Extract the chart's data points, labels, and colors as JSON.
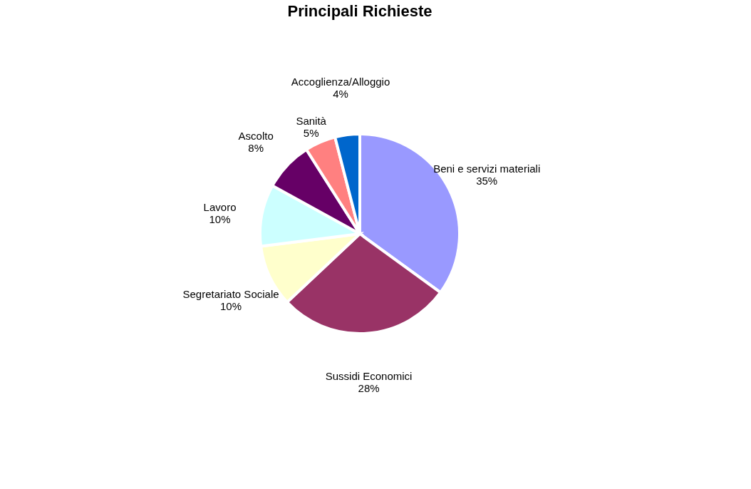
{
  "chart_data": {
    "type": "pie",
    "title": "Principali Richieste",
    "categories": [
      "Beni e servizi materiali",
      "Sussidi Economici",
      "Segretariato Sociale",
      "Lavoro",
      "Ascolto",
      "Sanità",
      "Accoglienza/Alloggio"
    ],
    "values": [
      35,
      28,
      10,
      10,
      8,
      5,
      4
    ],
    "value_labels": [
      "35%",
      "28%",
      "10%",
      "10%",
      "8%",
      "5%",
      "4%"
    ],
    "colors": [
      "#9999ff",
      "#993366",
      "#ffffcc",
      "#ccffff",
      "#660066",
      "#ff8080",
      "#0066cc"
    ],
    "legend": false
  }
}
